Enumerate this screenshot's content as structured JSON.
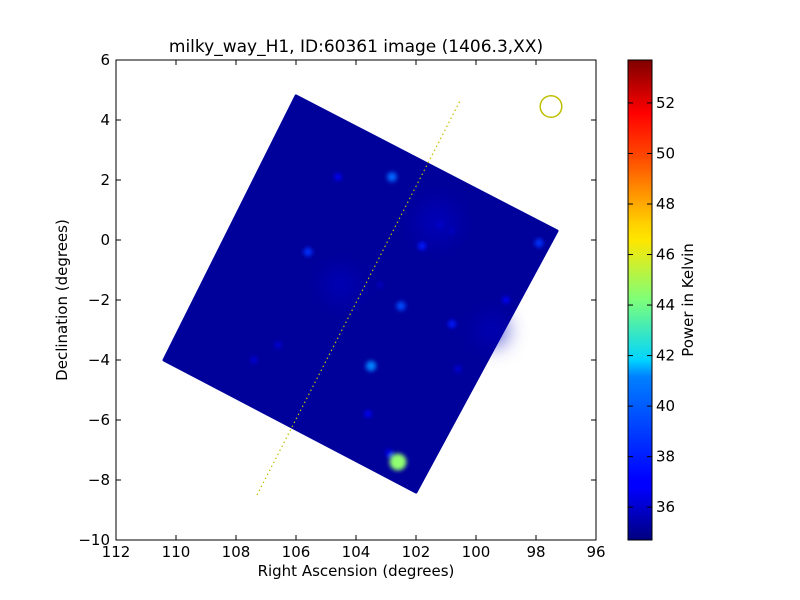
{
  "chart_data": {
    "type": "heatmap",
    "title": "milky_way_H1, ID:60361 image (1406.3,XX)",
    "xlabel": "Right Ascension (degrees)",
    "ylabel": "Declination (degrees)",
    "xlim": [
      112,
      96
    ],
    "ylim": [
      -10,
      6
    ],
    "x_ticks": [
      112,
      110,
      108,
      106,
      104,
      102,
      100,
      98,
      96
    ],
    "x_tick_labels": [
      "112",
      "110",
      "108",
      "106",
      "104",
      "102",
      "100",
      "98",
      "96"
    ],
    "y_ticks": [
      6,
      4,
      2,
      0,
      -2,
      -4,
      -6,
      -8,
      -10
    ],
    "y_tick_labels": [
      "6",
      "4",
      "2",
      "0",
      "−2",
      "−4",
      "−6",
      "−8",
      "−10"
    ],
    "colorbar": {
      "label": "Power in Kelvin",
      "range": [
        34.7,
        53.7
      ],
      "ticks": [
        36,
        38,
        40,
        42,
        44,
        46,
        48,
        50,
        52
      ],
      "tick_labels": [
        "36",
        "38",
        "40",
        "42",
        "44",
        "46",
        "48",
        "50",
        "52"
      ],
      "colormap": "jet"
    },
    "background_value": 35.2,
    "image_footprint_corners": [
      {
        "ra": 106.0,
        "dec": 4.8
      },
      {
        "ra": 97.3,
        "dec": 0.3
      },
      {
        "ra": 102.0,
        "dec": -8.4
      },
      {
        "ra": 110.4,
        "dec": -4.0
      }
    ],
    "sources": [
      {
        "ra": 102.6,
        "dec": -7.4,
        "value": 44.5
      },
      {
        "ra": 103.5,
        "dec": -4.2,
        "value": 39.5
      },
      {
        "ra": 102.8,
        "dec": 2.1,
        "value": 39.0
      },
      {
        "ra": 102.5,
        "dec": -2.2,
        "value": 38.5
      },
      {
        "ra": 105.6,
        "dec": -0.4,
        "value": 38.0
      },
      {
        "ra": 97.9,
        "dec": -0.1,
        "value": 38.0
      },
      {
        "ra": 100.8,
        "dec": -2.8,
        "value": 37.5
      },
      {
        "ra": 101.8,
        "dec": -0.2,
        "value": 37.5
      },
      {
        "ra": 104.6,
        "dec": 2.1,
        "value": 37.0
      },
      {
        "ra": 103.6,
        "dec": -5.8,
        "value": 37.0
      },
      {
        "ra": 102.9,
        "dec": -7.1,
        "value": 37.0
      },
      {
        "ra": 99.0,
        "dec": -2.0,
        "value": 37.0
      },
      {
        "ra": 107.4,
        "dec": -4.0,
        "value": 36.5
      },
      {
        "ra": 100.6,
        "dec": -4.3,
        "value": 36.5
      },
      {
        "ra": 106.6,
        "dec": -3.5,
        "value": 36.5
      },
      {
        "ra": 100.8,
        "dec": 0.3,
        "value": 36.0
      },
      {
        "ra": 103.2,
        "dec": -1.5,
        "value": 36.0
      },
      {
        "ra": 101.2,
        "dec": 0.5,
        "value": 36.2
      }
    ],
    "line": {
      "points": [
        [
          107.3,
          -8.5
        ],
        [
          100.5,
          4.7
        ]
      ],
      "style": "dotted",
      "color": "#bfbf00"
    },
    "circle": {
      "ra": 97.5,
      "dec": 4.45,
      "radius_deg": 0.36,
      "color": "#bfbf00"
    }
  }
}
